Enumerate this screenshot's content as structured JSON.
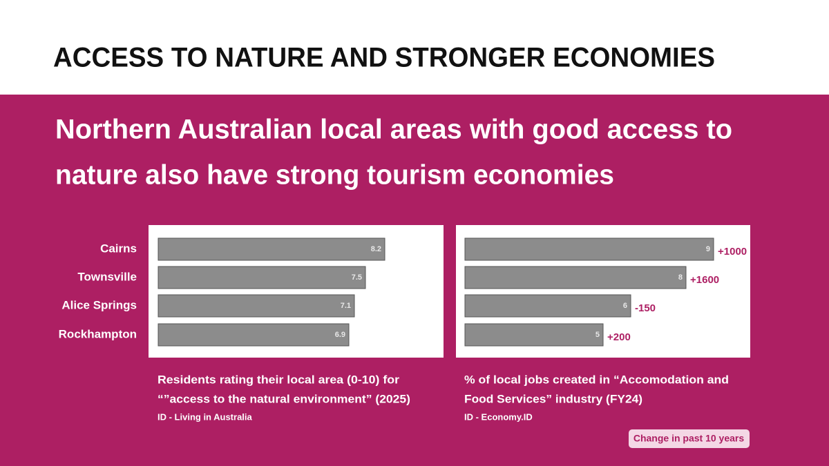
{
  "title": "ACCESS TO NATURE AND STRONGER ECONOMIES",
  "subtitle": [
    "Northern Australian local areas with good access to",
    "nature also have strong tourism economies"
  ],
  "note": "Change in past 10 years",
  "chart_data": [
    {
      "type": "bar",
      "orientation": "horizontal",
      "title": [
        "Residents rating their local area (0-10) for",
        "“”access to the natural environment” (2025)"
      ],
      "source": "ID - Living in Australia",
      "categories": [
        "Cairns",
        "Townsville",
        "Alice Springs",
        "Rockhampton"
      ],
      "values": [
        8.2,
        7.5,
        7.1,
        6.9
      ],
      "color": "#8c8c8c",
      "xlim": [
        0,
        10
      ]
    },
    {
      "type": "bar",
      "orientation": "horizontal",
      "title": [
        "% of local jobs created in “Accomodation and",
        "Food Services” industry (FY24)"
      ],
      "source": "ID - Economy.ID",
      "values": [
        9,
        8,
        6,
        5
      ],
      "annotations": [
        "+1000",
        "+1600",
        "-150",
        "+200"
      ],
      "color": "#8c8c8c",
      "xlim": [
        0,
        10
      ]
    }
  ]
}
